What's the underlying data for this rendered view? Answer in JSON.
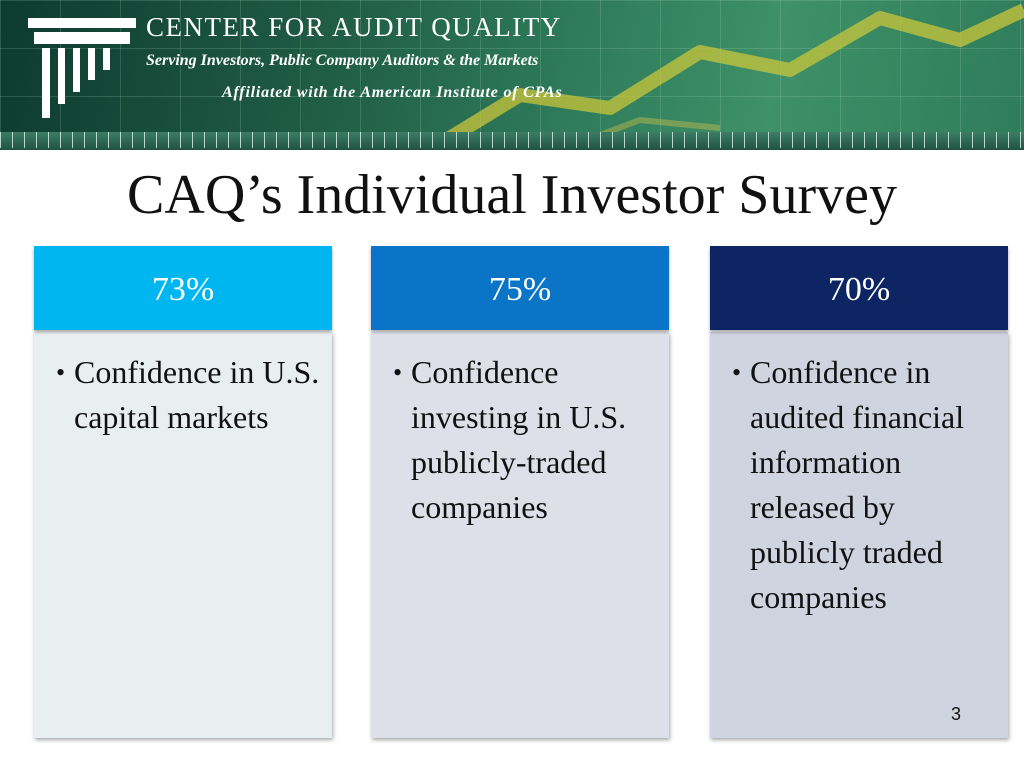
{
  "header": {
    "org_name": "CENTER FOR AUDIT QUALITY",
    "tagline": "Serving Investors, Public Company Auditors & the Markets",
    "affiliation": "Affiliated with the American Institute of CPAs"
  },
  "slide": {
    "title": "CAQ’s Individual Investor Survey",
    "page_number": "3"
  },
  "columns": [
    {
      "stat": "73%",
      "text": "Confidence in U.S. capital markets",
      "head_color": "#00b6f0",
      "body_color": "#e9eef0"
    },
    {
      "stat": "75%",
      "text": "Confidence investing in U.S. publicly-traded companies",
      "head_color": "#0a74c7",
      "body_color": "#dde0e8"
    },
    {
      "stat": "70%",
      "text": "Confidence in audited financial information released by publicly traded companies",
      "head_color": "#0e2563",
      "body_color": "#d0d3e0"
    }
  ]
}
